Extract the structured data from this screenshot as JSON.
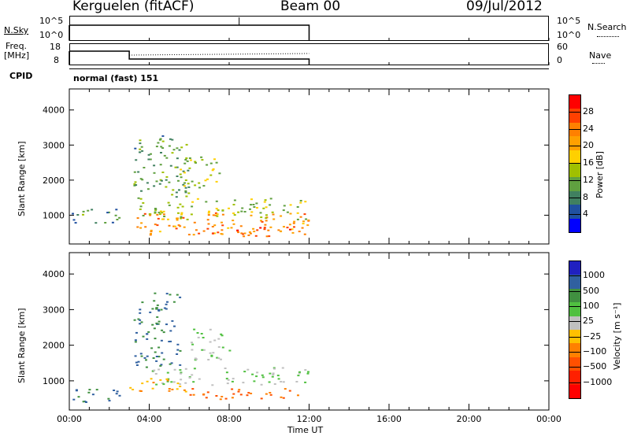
{
  "header": {
    "station": "Kerguelen (fitACF)",
    "beam": "Beam 00",
    "date": "09/Jul/2012"
  },
  "status_panels": {
    "nsky_label": "N.Sky",
    "nsky_ticks": [
      "10^5",
      "10^0"
    ],
    "nsearch_label": "N.Search",
    "nsearch_ticks": [
      "10^5",
      "10^0"
    ],
    "freq_label_1": "Freq.",
    "freq_label_2": "[MHz]",
    "freq_ticks": [
      "18",
      "8"
    ],
    "nave_label": "Nave",
    "nave_ticks": [
      "60",
      "0"
    ],
    "cpid_label": "CPID",
    "cpid_value": "normal (fast) 151"
  },
  "power_colorbar": {
    "label": "Power [dB]",
    "ticks": [
      "28",
      "24",
      "20",
      "16",
      "12",
      "8",
      "4"
    ],
    "colors": [
      "#ff0000",
      "#ff4000",
      "#ff8000",
      "#ffa000",
      "#ffd000",
      "#a0c000",
      "#60a040",
      "#408060",
      "#2050a0",
      "#0000ff"
    ]
  },
  "velocity_colorbar": {
    "label": "Velocity [m s⁻¹]",
    "ticks": [
      "1000",
      "500",
      "100",
      "25",
      "−25",
      "−100",
      "−500",
      "−1000"
    ],
    "colors": [
      "#2020c0",
      "#3060a0",
      "#409040",
      "#50c040",
      "#c0c0c0",
      "#ffc000",
      "#ff8000",
      "#ff5000",
      "#ff2000",
      "#ff0000"
    ]
  },
  "axes": {
    "xlabel": "Time UT",
    "ylabel": "Slant Range [km]",
    "xticks": [
      "00:00",
      "04:00",
      "08:00",
      "12:00",
      "16:00",
      "20:00",
      "00:00"
    ],
    "yticks": [
      "4000",
      "3000",
      "2000",
      "1000"
    ]
  },
  "chart_data": [
    {
      "type": "heatmap",
      "name": "power",
      "x_range_hours": [
        0,
        24
      ],
      "y_range_km": [
        180,
        4600
      ],
      "data_extent_hours": [
        0,
        12
      ],
      "colorbar_label": "Power [dB]",
      "colorbar_ticks": [
        4,
        8,
        12,
        16,
        20,
        24,
        28
      ],
      "bands": [
        {
          "t0": 3.3,
          "t1": 12.0,
          "r0": 450,
          "r1": 1100,
          "level": 24
        },
        {
          "t0": 3.5,
          "t1": 11.8,
          "r0": 900,
          "r1": 1500,
          "level": 14
        },
        {
          "t0": 8.0,
          "t1": 11.8,
          "r0": 400,
          "r1": 700,
          "level": 28
        },
        {
          "t0": 3.2,
          "t1": 6.0,
          "r0": 1500,
          "r1": 3300,
          "level": 10
        },
        {
          "t0": 0.0,
          "t1": 2.5,
          "r0": 800,
          "r1": 1200,
          "level": 8
        },
        {
          "t0": 5.5,
          "t1": 7.5,
          "r0": 1800,
          "r1": 2700,
          "level": 14
        }
      ]
    },
    {
      "type": "heatmap",
      "name": "velocity",
      "x_range_hours": [
        0,
        24
      ],
      "y_range_km": [
        180,
        4600
      ],
      "data_extent_hours": [
        0,
        12
      ],
      "colorbar_label": "Velocity [m s⁻¹]",
      "colorbar_ticks": [
        -1000,
        -500,
        -100,
        -25,
        25,
        100,
        500,
        1000
      ],
      "bands": [
        {
          "t0": 4.0,
          "t1": 12.0,
          "r0": 900,
          "r1": 1400,
          "level": 0
        },
        {
          "t0": 6.0,
          "t1": 11.8,
          "r0": 500,
          "r1": 800,
          "level": -500
        },
        {
          "t0": 3.2,
          "t1": 5.5,
          "r0": 1400,
          "r1": 3500,
          "level": 100
        },
        {
          "t0": 0.0,
          "t1": 2.5,
          "r0": 400,
          "r1": 800,
          "level": 100
        },
        {
          "t0": 3.0,
          "t1": 6.0,
          "r0": 700,
          "r1": 1100,
          "level": -100
        },
        {
          "t0": 6.0,
          "t1": 8.0,
          "r0": 1600,
          "r1": 2500,
          "level": 0
        }
      ]
    }
  ]
}
